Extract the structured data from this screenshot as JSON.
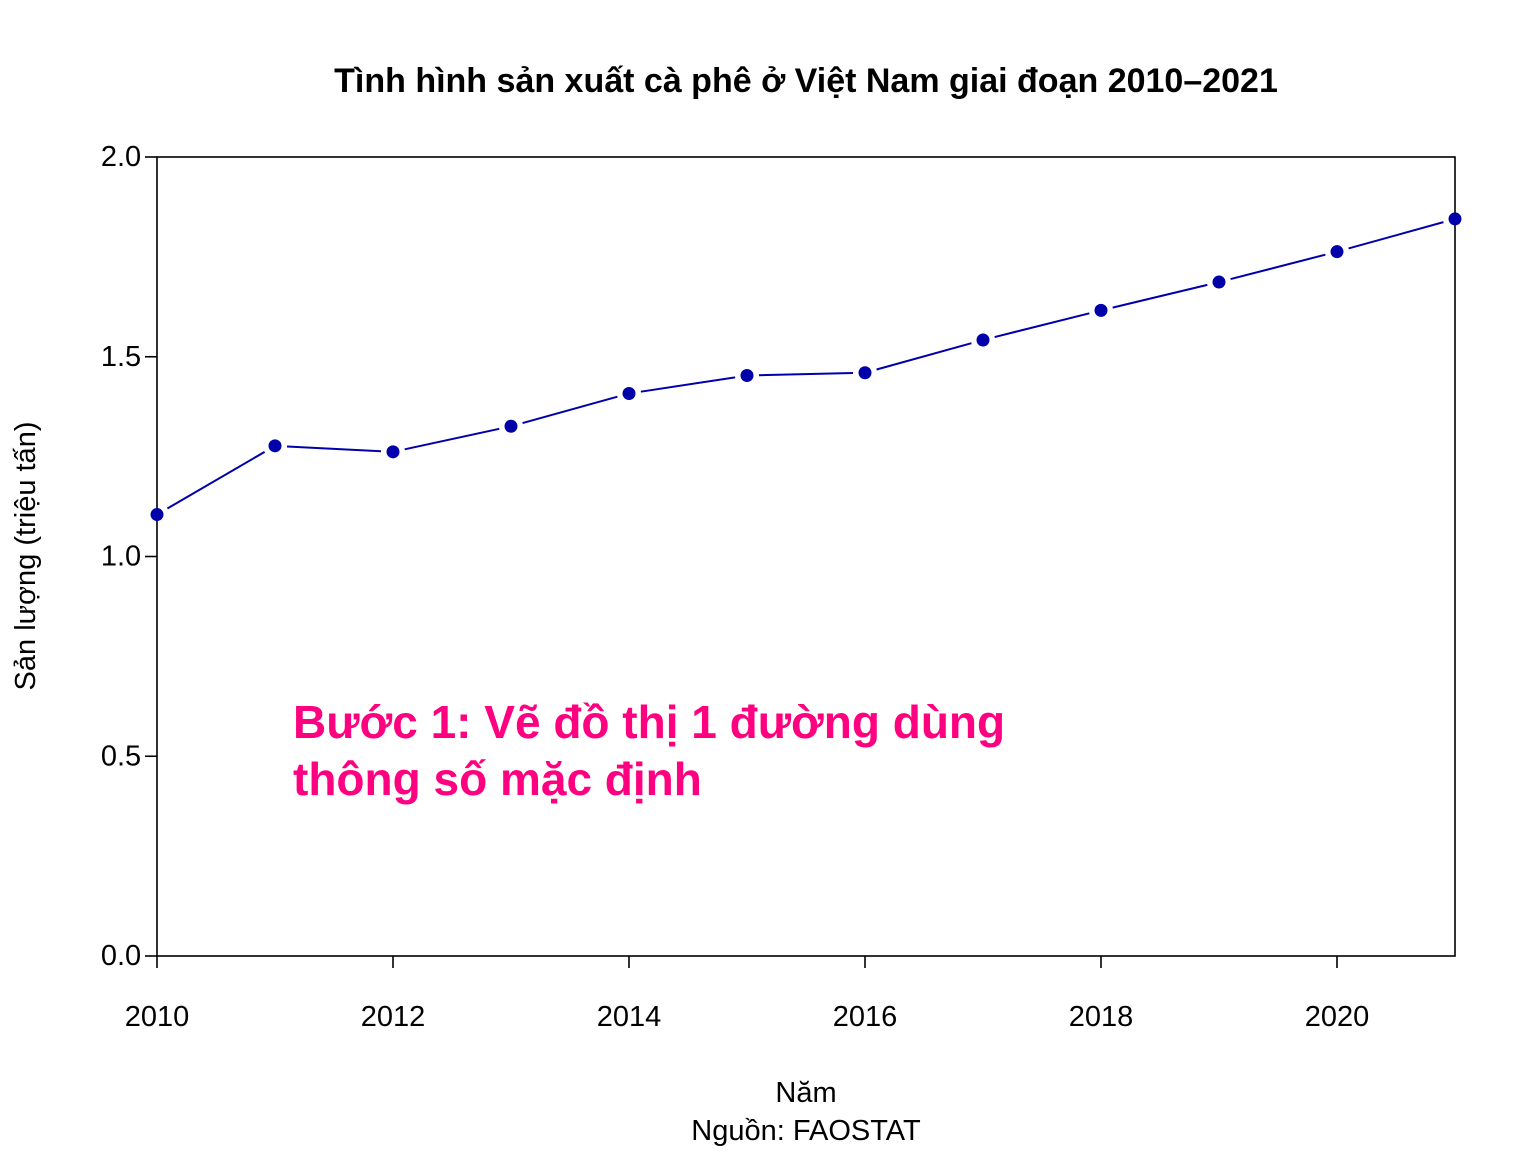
{
  "chart_data": {
    "type": "line",
    "title": "Tình hình sản xuất cà phê ở Việt Nam giai đoạn 2010–2021",
    "xlabel": "Năm",
    "ylabel": "Sản lượng (triệu tấn)",
    "caption": "Nguồn: FAOSTAT",
    "x": [
      2010,
      2011,
      2012,
      2013,
      2014,
      2015,
      2016,
      2017,
      2018,
      2019,
      2020,
      2021
    ],
    "series": [
      {
        "values": [
          1.105,
          1.277,
          1.262,
          1.326,
          1.408,
          1.453,
          1.46,
          1.542,
          1.616,
          1.687,
          1.763,
          1.845
        ]
      }
    ],
    "xlim": [
      2010,
      2021
    ],
    "ylim": [
      0,
      2
    ],
    "x_ticks": [
      "2010",
      "2012",
      "2014",
      "2016",
      "2018",
      "2020"
    ],
    "y_ticks": [
      "0.0",
      "0.5",
      "1.0",
      "1.5",
      "2.0"
    ],
    "grid": false,
    "line_color": "#0000aa",
    "marker_color": "#0000aa",
    "annotation": {
      "lines": [
        "Bước 1: Vẽ đồ thị 1 đường dùng",
        "thông số mặc định"
      ],
      "color": "#ff0080"
    }
  }
}
